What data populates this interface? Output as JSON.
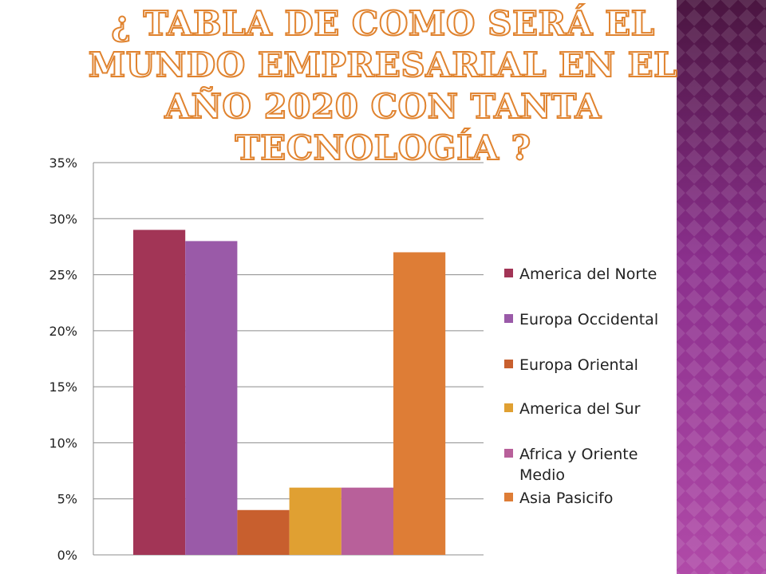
{
  "slide": {
    "title": "¿ Tabla de como será el mundo empresarial en el año 2020 con tanta tecnología ?"
  },
  "chart_data": {
    "type": "bar",
    "title": "",
    "xlabel": "",
    "ylabel": "",
    "ylim": [
      0,
      0.35
    ],
    "y_ticks": [
      "0%",
      "5%",
      "10%",
      "15%",
      "20%",
      "25%",
      "30%",
      "35%"
    ],
    "grid": true,
    "legend_position": "right",
    "categories": [
      ""
    ],
    "series": [
      {
        "name": "America del Norte",
        "values": [
          0.29
        ],
        "color": "#a23556"
      },
      {
        "name": "Europa Occidental",
        "values": [
          0.28
        ],
        "color": "#9a5aa8"
      },
      {
        "name": "Europa Oriental",
        "values": [
          0.04
        ],
        "color": "#c85f2e"
      },
      {
        "name": "America del Sur",
        "values": [
          0.06
        ],
        "color": "#e0a032"
      },
      {
        "name": "Africa y Oriente Medio",
        "values": [
          0.06
        ],
        "color": "#b8609a"
      },
      {
        "name": "Asia Pasicifo",
        "values": [
          0.27
        ],
        "color": "#de7d36"
      }
    ]
  }
}
